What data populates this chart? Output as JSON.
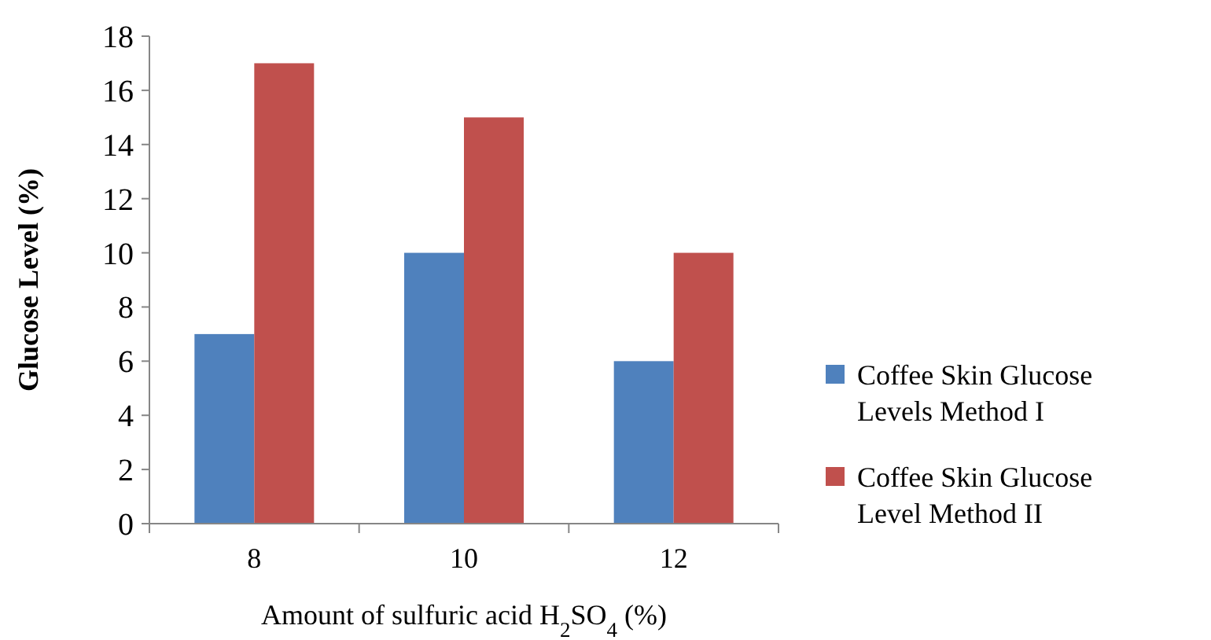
{
  "chart_data": {
    "type": "bar",
    "xlabel": "Amount of sulfuric acid H$_{2}$SO$_{4}$ (%)",
    "ylabel": "Glucose Level (%)",
    "categories": [
      "8",
      "10",
      "12"
    ],
    "series": [
      {
        "name": "Coffee Skin Glucose Levels Method I",
        "color": "#4f81bd",
        "values": [
          7,
          10,
          6
        ]
      },
      {
        "name": "Coffee Skin Glucose Level Method II",
        "color": "#c0504d",
        "values": [
          17,
          15,
          10
        ]
      }
    ],
    "ylim": [
      0,
      18
    ],
    "yticks": [
      0,
      2,
      4,
      6,
      8,
      10,
      12,
      14,
      16,
      18
    ],
    "grid": false,
    "legend": "right"
  }
}
